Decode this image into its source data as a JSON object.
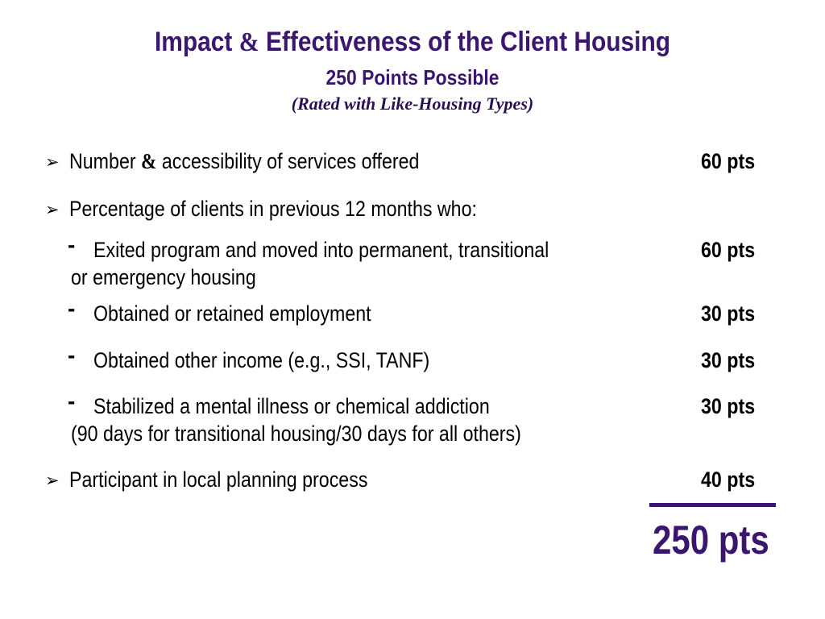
{
  "title": {
    "main_before": "Impact ",
    "main_amp": "&",
    "main_after": " Effectiveness of the Client Housing",
    "subtitle": "250 Points Possible",
    "note": "(Rated with Like-Housing Types)"
  },
  "items": [
    {
      "bullet": "➢",
      "text_before": "Number ",
      "text_amp": "&",
      "text_after": " accessibility of services offered",
      "points": "60 pts"
    },
    {
      "bullet": "➢",
      "text": "Percentage of clients in previous 12 months who:"
    }
  ],
  "subitems": [
    {
      "bullet": "-",
      "text": "Exited program and moved into permanent, transitional",
      "continuation": "or emergency housing",
      "points": "60 pts"
    },
    {
      "bullet": "-",
      "text": "Obtained or retained employment",
      "points": "30 pts"
    },
    {
      "bullet": "-",
      "text": "Obtained other income (e.g., SSI, TANF)",
      "points": "30 pts"
    },
    {
      "bullet": "-",
      "text": "Stabilized a mental illness or chemical addiction",
      "continuation": "(90 days for transitional housing/30 days for all others)",
      "points": "30 pts"
    }
  ],
  "final_item": {
    "bullet": "➢",
    "text": "Participant in local planning process",
    "points": "40 pts"
  },
  "total": "250 pts",
  "colors": {
    "accent": "#3a1670"
  }
}
